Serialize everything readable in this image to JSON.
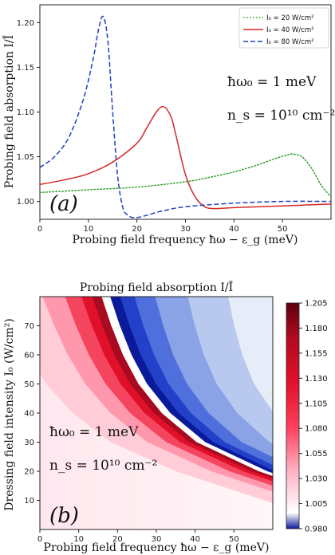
{
  "chart_data": [
    {
      "type": "line",
      "panel_label": "(a)",
      "xlabel": "Probing field frequency ħω − ε_g (meV)",
      "ylabel": "Probing field absorption I/Ī",
      "xlim": [
        0,
        60
      ],
      "ylim": [
        0.98,
        1.22
      ],
      "xticks": [
        0,
        10,
        20,
        30,
        40,
        50
      ],
      "yticks": [
        1.0,
        1.05,
        1.1,
        1.15,
        1.2
      ],
      "ytick_labels": [
        "1.00",
        "1.05",
        "1.10",
        "1.15",
        "1.20"
      ],
      "legend_position": "top-right",
      "annotations": [
        "ħω₀ = 1 meV",
        "n_s = 10¹⁰ cm⁻²"
      ],
      "series": [
        {
          "name": "I₀ = 20 W/cm²",
          "color": "#2ca02c",
          "style": "dotted",
          "x": [
            0,
            10,
            20,
            30,
            35,
            40,
            45,
            48,
            51,
            52,
            54,
            56,
            58,
            60
          ],
          "y": [
            1.01,
            1.013,
            1.016,
            1.022,
            1.027,
            1.033,
            1.041,
            1.047,
            1.052,
            1.053,
            1.05,
            1.037,
            1.018,
            1.005
          ]
        },
        {
          "name": "I₀ = 40 W/cm²",
          "color": "#d62728",
          "style": "solid",
          "x": [
            0,
            5,
            10,
            15,
            20,
            22,
            24,
            25.5,
            27,
            28,
            30,
            32,
            34,
            36,
            40,
            50,
            60
          ],
          "y": [
            1.019,
            1.024,
            1.031,
            1.044,
            1.065,
            1.082,
            1.1,
            1.106,
            1.095,
            1.075,
            1.03,
            1.005,
            0.994,
            0.992,
            0.993,
            0.995,
            0.997
          ]
        },
        {
          "name": "I₀ = 80 W/cm²",
          "color": "#1f3fbf",
          "style": "dashed",
          "x": [
            0,
            3,
            6,
            9,
            11,
            12,
            13,
            14,
            15,
            16,
            17,
            18,
            20,
            25,
            30,
            40,
            50,
            60
          ],
          "y": [
            1.038,
            1.05,
            1.072,
            1.115,
            1.16,
            1.19,
            1.207,
            1.18,
            1.1,
            1.03,
            0.995,
            0.985,
            0.982,
            0.989,
            0.994,
            0.998,
            1.0,
            1.0
          ]
        }
      ]
    },
    {
      "type": "heatmap",
      "panel_label": "(b)",
      "title": "Probing field absorption I/Ī",
      "xlabel": "Probing field frequency ħω − ε_g (meV)",
      "ylabel": "Dressing field intensity I₀ (W/cm²)",
      "xlim": [
        0,
        60
      ],
      "ylim": [
        0,
        80
      ],
      "xticks": [
        0,
        10,
        20,
        30,
        40,
        50
      ],
      "yticks": [
        10,
        20,
        30,
        40,
        50,
        60,
        70
      ],
      "annotations": [
        "ħω₀ = 1 meV",
        "n_s = 10¹⁰ cm⁻²"
      ],
      "resonance_curve": {
        "description": "peak absorption ridge; low-frequency side red, high-frequency side blue",
        "I0": [
          80,
          70,
          60,
          50,
          40,
          30,
          20
        ],
        "freq": [
          16.5,
          19,
          22,
          26,
          32,
          41,
          57
        ]
      },
      "colorbar": {
        "levels": [
          "1.205",
          "1.180",
          "1.155",
          "1.130",
          "1.105",
          "1.080",
          "1.055",
          "1.030",
          "1.005",
          "0.980"
        ],
        "min": 0.98,
        "max": 1.205,
        "colors": {
          "low": "#0a1a9a",
          "zero": "#ffffff",
          "high": "#67000d"
        }
      }
    }
  ]
}
